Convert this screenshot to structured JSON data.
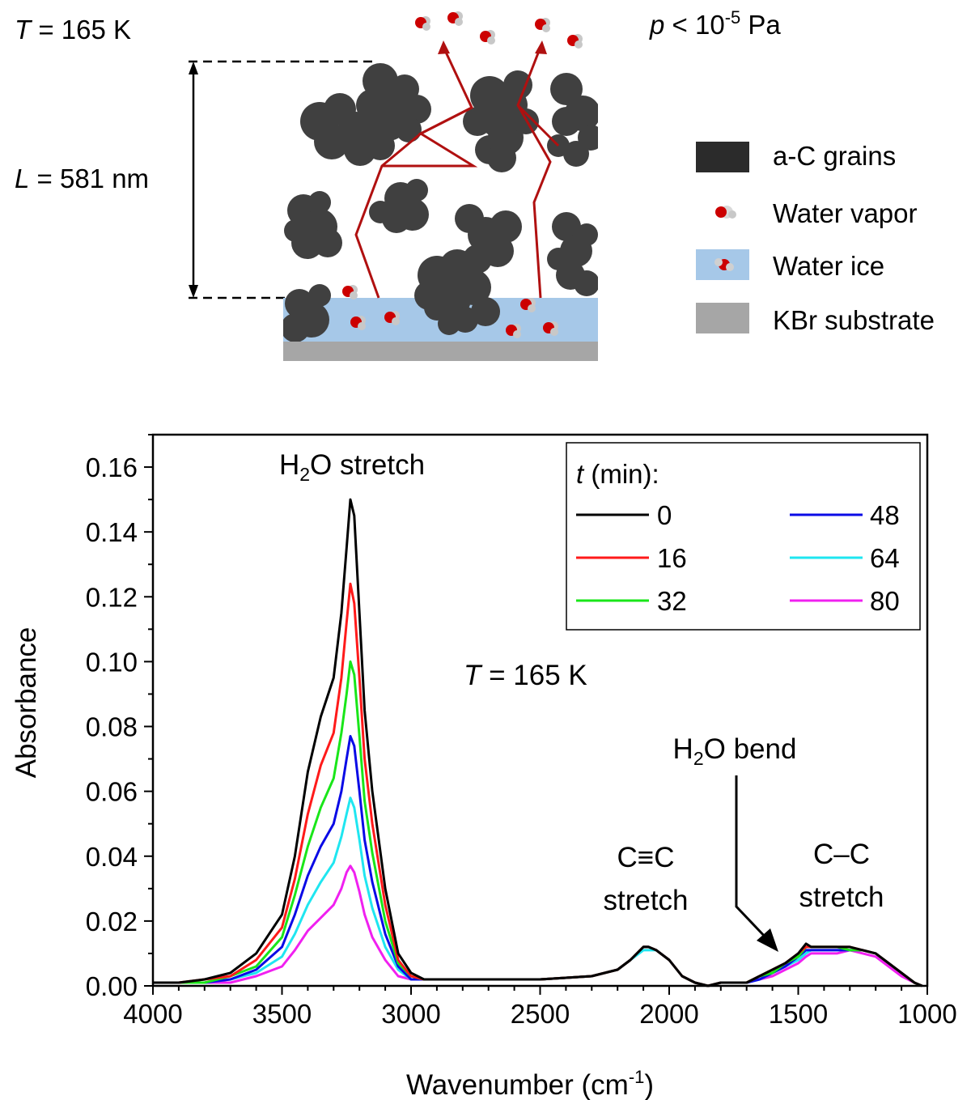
{
  "diagram": {
    "temperature": {
      "var": "T",
      "text": " = 165 K"
    },
    "pressure": {
      "var": "p",
      "text": " < 10",
      "exp": "-5",
      "unit": " Pa"
    },
    "thickness": {
      "var": "L",
      "text": " = 581 nm"
    },
    "legend": [
      {
        "label": "a-C grains",
        "color": "#2b2b2b"
      },
      {
        "label": "Water vapor",
        "color": "#cc0000"
      },
      {
        "label": "Water ice",
        "color": "#a6c8e8"
      },
      {
        "label": "KBr substrate",
        "color": "#a6a6a6"
      }
    ],
    "colors": {
      "grain": "#404040",
      "ice": "#a6c8e8",
      "substrate": "#a6a6a6",
      "path": "#b01010",
      "molecule_o": "#cc0000",
      "molecule_h": "#c8c8c8"
    }
  },
  "chart_data": {
    "type": "line",
    "xlabel": "Wavenumber (cm",
    "xlabel_sup": "-1",
    "xlabel_end": ")",
    "ylabel": "Absorbance",
    "xlim": [
      4000,
      1000
    ],
    "ylim": [
      0.0,
      0.17
    ],
    "xticks": [
      "4000",
      "3500",
      "3000",
      "2500",
      "2000",
      "1500",
      "1000"
    ],
    "yticks": [
      "0.00",
      "0.02",
      "0.04",
      "0.06",
      "0.08",
      "0.10",
      "0.12",
      "0.14",
      "0.16"
    ],
    "legend_title_var": "t",
    "legend_title_rest": " (min):",
    "legend_position": "top-right",
    "annotations": {
      "h2o_stretch": {
        "pre": "H",
        "sub": "2",
        "post": "O stretch"
      },
      "temperature": {
        "var": "T",
        "text": " = 165 K"
      },
      "h2o_bend": {
        "pre": "H",
        "sub": "2",
        "post": "O bend"
      },
      "cc_triple": {
        "line1": "C≡C",
        "line2": "stretch"
      },
      "cc_single": {
        "line1": "C–C",
        "line2": "stretch"
      }
    },
    "x": [
      4000,
      3900,
      3800,
      3700,
      3600,
      3500,
      3450,
      3400,
      3350,
      3300,
      3270,
      3250,
      3235,
      3220,
      3200,
      3180,
      3150,
      3100,
      3050,
      3000,
      2950,
      2900,
      2800,
      2500,
      2300,
      2200,
      2150,
      2100,
      2080,
      2050,
      2000,
      1950,
      1900,
      1850,
      1800,
      1700,
      1650,
      1600,
      1550,
      1500,
      1470,
      1450,
      1400,
      1350,
      1300,
      1250,
      1200,
      1150,
      1100,
      1050,
      1020
    ],
    "series": [
      {
        "name": "0",
        "color": "#000000",
        "values": [
          0.001,
          0.001,
          0.002,
          0.004,
          0.01,
          0.022,
          0.04,
          0.066,
          0.083,
          0.095,
          0.115,
          0.135,
          0.15,
          0.145,
          0.115,
          0.085,
          0.06,
          0.03,
          0.01,
          0.004,
          0.002,
          0.002,
          0.002,
          0.002,
          0.003,
          0.005,
          0.008,
          0.012,
          0.012,
          0.011,
          0.008,
          0.003,
          0.001,
          0.0,
          0.001,
          0.001,
          0.003,
          0.005,
          0.007,
          0.01,
          0.013,
          0.012,
          0.012,
          0.012,
          0.012,
          0.011,
          0.01,
          0.007,
          0.004,
          0.001,
          0.0
        ]
      },
      {
        "name": "16",
        "color": "#ff1a1a",
        "values": [
          0.001,
          0.001,
          0.002,
          0.003,
          0.008,
          0.018,
          0.033,
          0.053,
          0.068,
          0.078,
          0.095,
          0.112,
          0.124,
          0.118,
          0.095,
          0.07,
          0.05,
          0.025,
          0.008,
          0.003,
          0.002,
          0.002,
          0.002,
          0.002,
          0.003,
          0.005,
          0.008,
          0.012,
          0.012,
          0.011,
          0.008,
          0.003,
          0.001,
          0.0,
          0.001,
          0.001,
          0.003,
          0.005,
          0.007,
          0.01,
          0.012,
          0.012,
          0.012,
          0.012,
          0.012,
          0.011,
          0.01,
          0.007,
          0.004,
          0.001,
          0.0
        ]
      },
      {
        "name": "32",
        "color": "#19e619",
        "values": [
          0.001,
          0.001,
          0.001,
          0.003,
          0.006,
          0.015,
          0.028,
          0.043,
          0.055,
          0.064,
          0.078,
          0.09,
          0.1,
          0.096,
          0.077,
          0.057,
          0.041,
          0.02,
          0.007,
          0.003,
          0.002,
          0.002,
          0.002,
          0.002,
          0.003,
          0.005,
          0.008,
          0.012,
          0.012,
          0.011,
          0.008,
          0.003,
          0.001,
          0.0,
          0.001,
          0.001,
          0.003,
          0.004,
          0.007,
          0.009,
          0.012,
          0.012,
          0.012,
          0.012,
          0.011,
          0.011,
          0.01,
          0.007,
          0.004,
          0.001,
          0.0
        ]
      },
      {
        "name": "48",
        "color": "#0a0ae6",
        "values": [
          0.001,
          0.001,
          0.001,
          0.002,
          0.005,
          0.012,
          0.022,
          0.034,
          0.043,
          0.05,
          0.06,
          0.07,
          0.077,
          0.074,
          0.06,
          0.045,
          0.032,
          0.016,
          0.006,
          0.002,
          0.002,
          0.002,
          0.002,
          0.002,
          0.003,
          0.005,
          0.008,
          0.012,
          0.012,
          0.011,
          0.008,
          0.003,
          0.001,
          0.0,
          0.001,
          0.001,
          0.002,
          0.004,
          0.006,
          0.009,
          0.011,
          0.011,
          0.011,
          0.011,
          0.011,
          0.011,
          0.01,
          0.007,
          0.004,
          0.001,
          0.0
        ]
      },
      {
        "name": "64",
        "color": "#1fe6f0",
        "values": [
          0.001,
          0.001,
          0.001,
          0.002,
          0.004,
          0.009,
          0.016,
          0.025,
          0.032,
          0.038,
          0.046,
          0.053,
          0.058,
          0.055,
          0.045,
          0.034,
          0.024,
          0.012,
          0.005,
          0.002,
          0.002,
          0.002,
          0.002,
          0.002,
          0.003,
          0.005,
          0.008,
          0.011,
          0.011,
          0.011,
          0.008,
          0.003,
          0.001,
          0.0,
          0.001,
          0.001,
          0.002,
          0.004,
          0.006,
          0.008,
          0.01,
          0.011,
          0.011,
          0.011,
          0.011,
          0.011,
          0.01,
          0.007,
          0.004,
          0.001,
          0.0
        ]
      },
      {
        "name": "80",
        "color": "#f020f0",
        "values": [
          0.001,
          0.001,
          0.001,
          0.001,
          0.003,
          0.006,
          0.011,
          0.017,
          0.021,
          0.025,
          0.03,
          0.035,
          0.037,
          0.035,
          0.029,
          0.022,
          0.015,
          0.008,
          0.003,
          0.002,
          0.002,
          0.002,
          0.002,
          0.002,
          0.003,
          0.005,
          0.008,
          0.012,
          0.012,
          0.011,
          0.008,
          0.003,
          0.001,
          0.0,
          0.001,
          0.001,
          0.002,
          0.003,
          0.005,
          0.007,
          0.009,
          0.01,
          0.01,
          0.01,
          0.011,
          0.01,
          0.009,
          0.006,
          0.003,
          0.001,
          0.0
        ]
      }
    ]
  }
}
